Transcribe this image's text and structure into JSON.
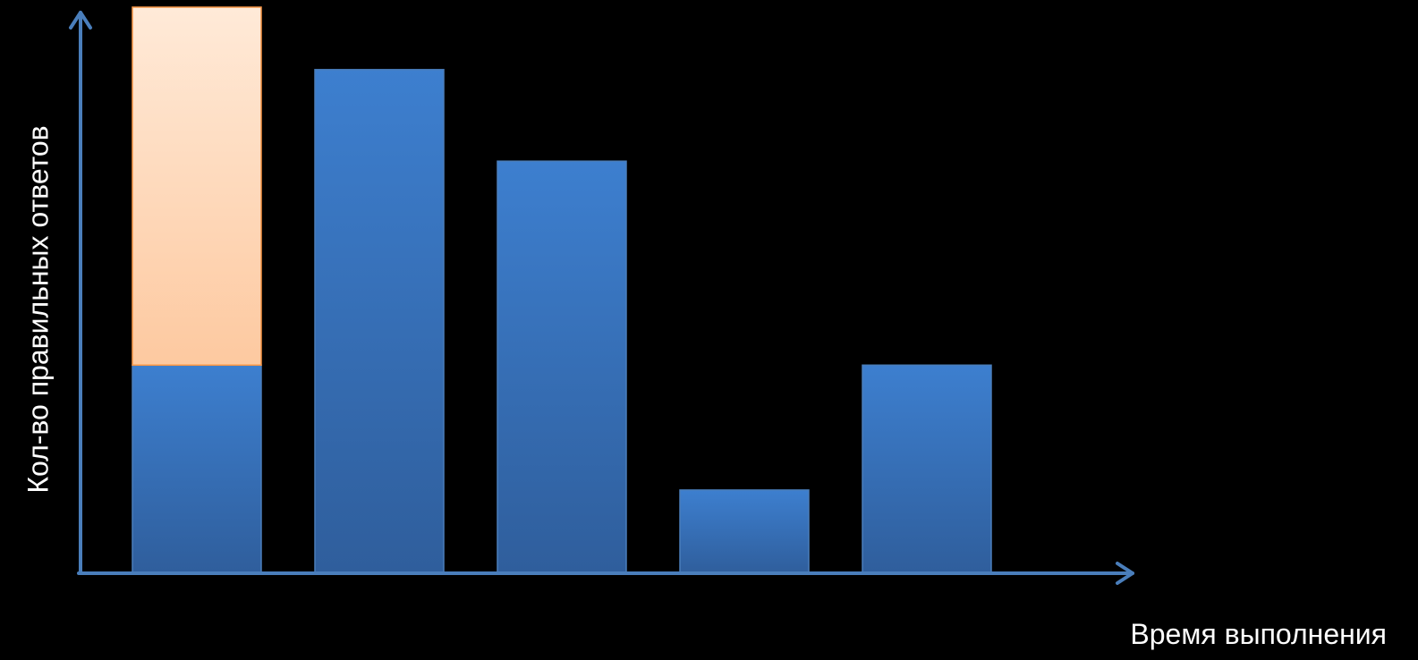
{
  "chart_data": {
    "type": "bar",
    "stacked": true,
    "title": "",
    "xlabel": "Время выполнения",
    "ylabel": "Кол-во правильных ответов",
    "categories": [
      "",
      "",
      "",
      "",
      ""
    ],
    "series": [
      {
        "values": [
          100,
          242,
          198,
          40,
          100
        ]
      },
      {
        "values": [
          172,
          0,
          0,
          0,
          0
        ]
      }
    ],
    "ylim": [
      0,
      272
    ],
    "grid": false,
    "legend": "none"
  },
  "colors": {
    "background": "#000000",
    "axis": "#4a7ebb",
    "bar_blue_top": "#3d7fcf",
    "bar_blue_bottom": "#2f5e9c",
    "bar_orange_top": "#ffead8",
    "bar_orange_bottom": "#fdc9a0",
    "bar_orange_border": "#f79646",
    "bar_blue_border": "#4a7ebb",
    "text": "#ffffff"
  }
}
